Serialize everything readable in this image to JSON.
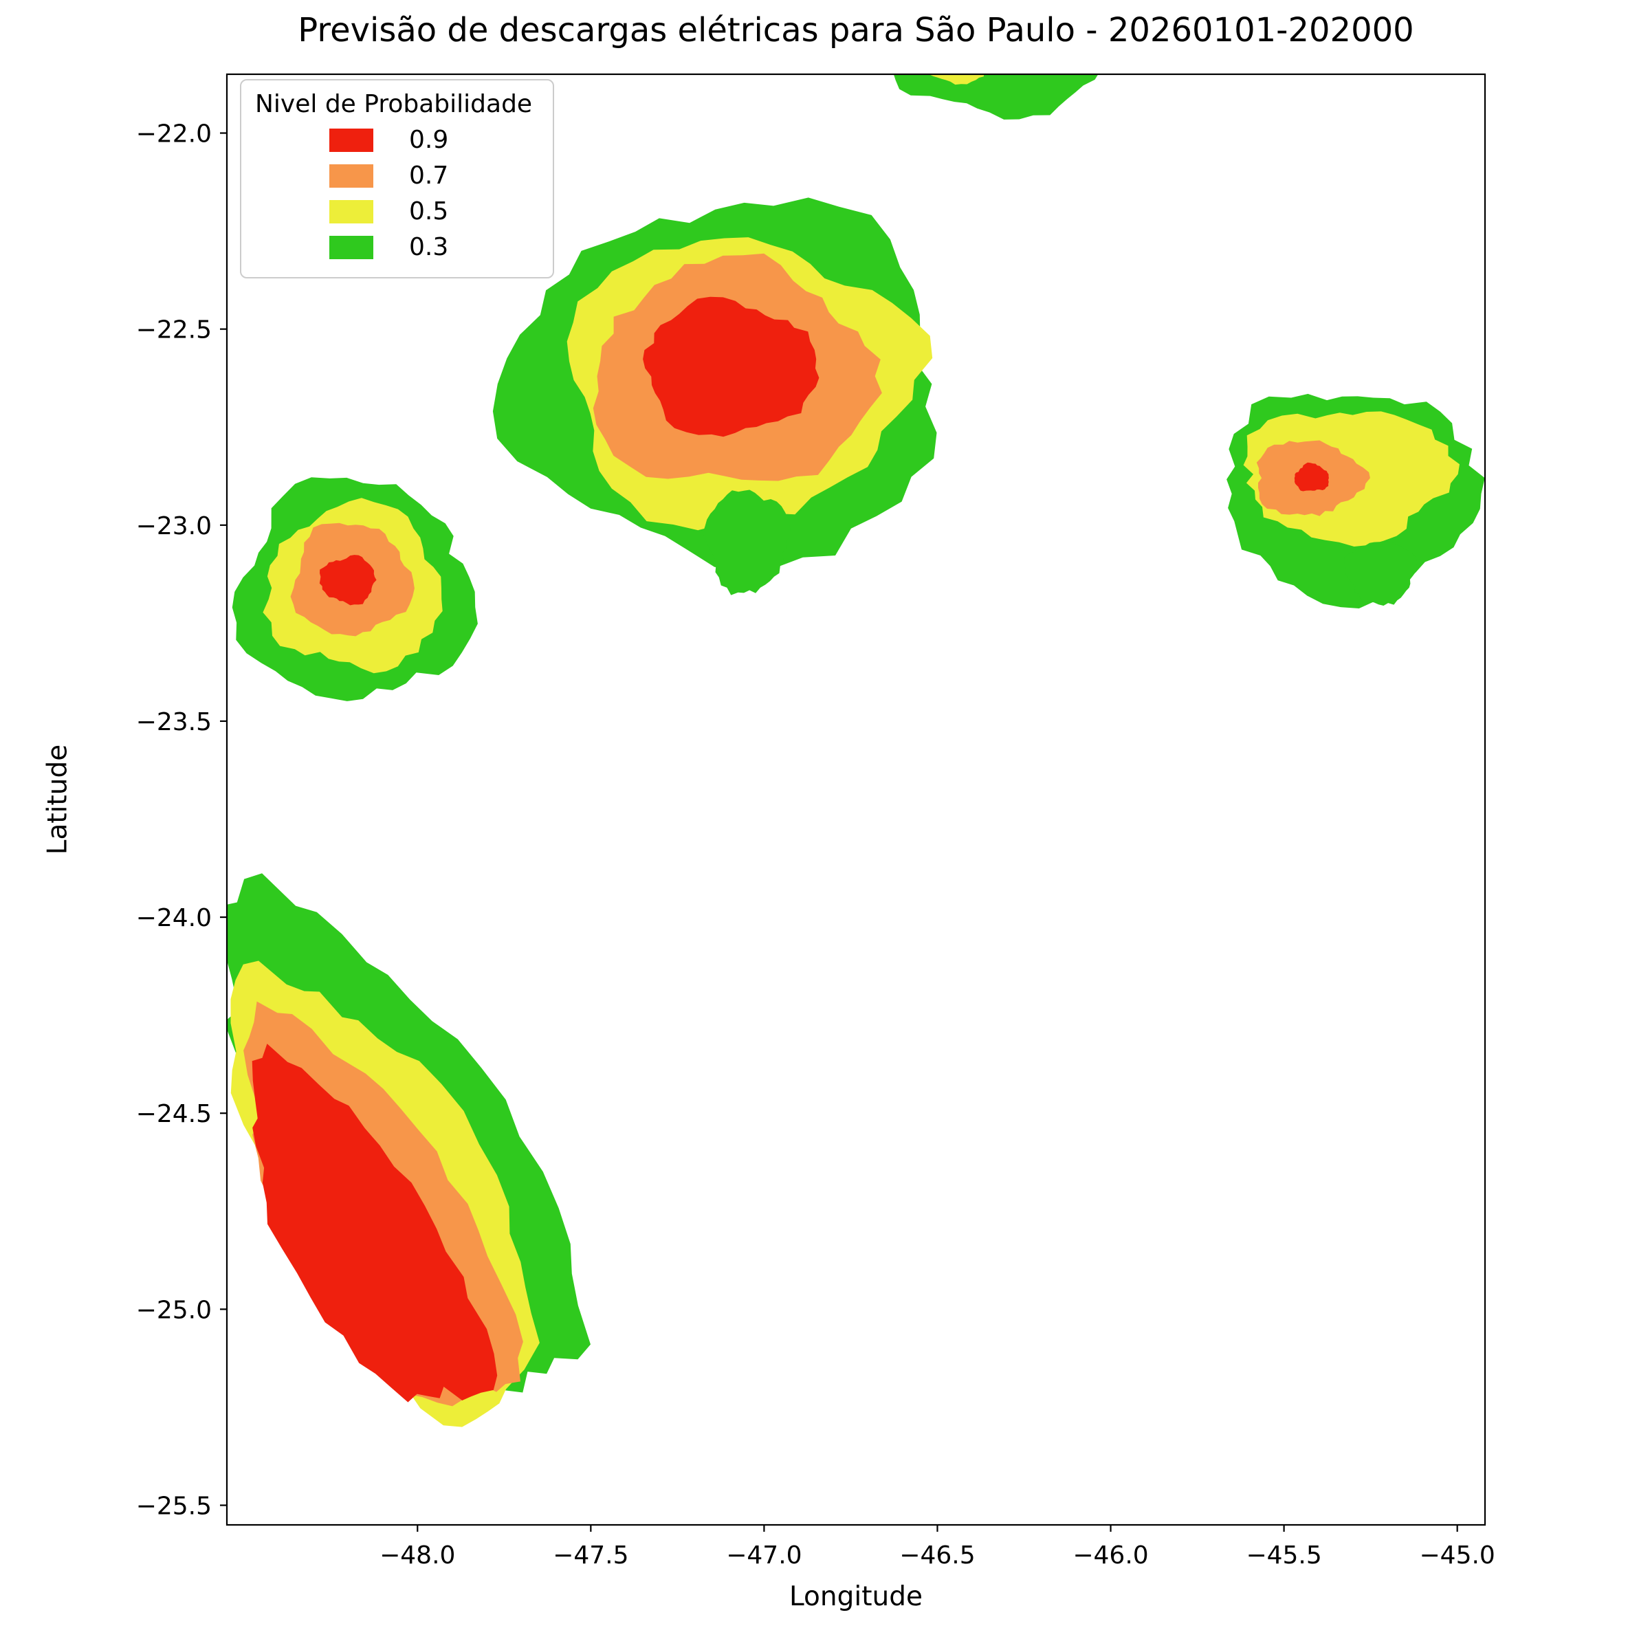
{
  "title": "Previsão de descargas elétricas para São Paulo - 20260101-202000",
  "axes": {
    "xlabel": "Longitude",
    "ylabel": "Latitude"
  },
  "legend": {
    "title": "Nivel de Probabilidade",
    "entries": [
      {
        "label": "0.9",
        "color": "#ef200e"
      },
      {
        "label": "0.7",
        "color": "#f7964a"
      },
      {
        "label": "0.5",
        "color": "#edee39"
      },
      {
        "label": "0.3",
        "color": "#2fc91e"
      }
    ]
  },
  "chart_data": {
    "type": "contour",
    "title": "Previsão de descargas elétricas para São Paulo - 20260101-202000",
    "xlabel": "Longitude",
    "ylabel": "Latitude",
    "xlim": [
      -48.55,
      -44.92
    ],
    "ylim": [
      -25.55,
      -21.85
    ],
    "xticks": [
      -48.0,
      -47.5,
      -47.0,
      -46.5,
      -46.0,
      -45.5,
      -45.0
    ],
    "xtick_labels": [
      "−48.0",
      "−47.5",
      "−47.0",
      "−46.5",
      "−46.0",
      "−45.5",
      "−45.0"
    ],
    "yticks": [
      -22.0,
      -22.5,
      -23.0,
      -23.5,
      -24.0,
      -24.5,
      -25.0,
      -25.5
    ],
    "ytick_labels": [
      "−22.0",
      "−22.5",
      "−23.0",
      "−23.5",
      "−24.0",
      "−24.5",
      "−25.0",
      "−25.5"
    ],
    "grid": false,
    "legend_position": "upper left",
    "probability_levels": [
      0.3,
      0.5,
      0.7,
      0.9
    ],
    "level_colors": {
      "0.3": "#2fc91e",
      "0.5": "#edee39",
      "0.7": "#f7964a",
      "0.9": "#ef200e"
    },
    "blobs": [
      {
        "name": "north-cell",
        "seed": 3,
        "rotation_deg": 0,
        "levels": [
          {
            "level": 0.3,
            "color": "#2fc91e",
            "cx": -46.33,
            "cy": -21.8,
            "rx": 0.3,
            "ry": 0.155
          },
          {
            "level": 0.5,
            "color": "#edee39",
            "cx": -46.44,
            "cy": -21.82,
            "rx": 0.11,
            "ry": 0.05
          }
        ]
      },
      {
        "name": "central-cell",
        "seed": 7,
        "rotation_deg": 0,
        "levels": [
          {
            "level": 0.3,
            "color": "#2fc91e",
            "cx": -47.1,
            "cy": -22.64,
            "rx": 0.62,
            "ry": 0.46
          },
          {
            "level": 0.5,
            "color": "#edee39",
            "cx": -47.08,
            "cy": -22.63,
            "rx": 0.5,
            "ry": 0.36
          },
          {
            "level": 0.7,
            "color": "#f7964a",
            "cx": -47.09,
            "cy": -22.62,
            "rx": 0.4,
            "ry": 0.29
          },
          {
            "level": 0.9,
            "color": "#ef200e",
            "cx": -47.1,
            "cy": -22.6,
            "rx": 0.25,
            "ry": 0.17
          }
        ]
      },
      {
        "name": "central-cell-tail",
        "seed": 9,
        "rotation_deg": 0,
        "levels": [
          {
            "level": 0.3,
            "color": "#2fc91e",
            "cx": -47.05,
            "cy": -23.04,
            "rx": 0.12,
            "ry": 0.13
          }
        ]
      },
      {
        "name": "west-cell",
        "seed": 5,
        "rotation_deg": 0,
        "levels": [
          {
            "level": 0.3,
            "color": "#2fc91e",
            "cx": -48.18,
            "cy": -23.17,
            "rx": 0.34,
            "ry": 0.28
          },
          {
            "level": 0.5,
            "color": "#edee39",
            "cx": -48.18,
            "cy": -23.16,
            "rx": 0.25,
            "ry": 0.21
          },
          {
            "level": 0.7,
            "color": "#f7964a",
            "cx": -48.19,
            "cy": -23.14,
            "rx": 0.17,
            "ry": 0.145
          },
          {
            "level": 0.9,
            "color": "#ef200e",
            "cx": -48.2,
            "cy": -23.14,
            "rx": 0.08,
            "ry": 0.06
          }
        ]
      },
      {
        "name": "east-cell",
        "seed": 11,
        "rotation_deg": 0,
        "levels": [
          {
            "level": 0.3,
            "color": "#2fc91e",
            "cx": -45.31,
            "cy": -22.92,
            "rx": 0.36,
            "ry": 0.27
          },
          {
            "level": 0.5,
            "color": "#edee39",
            "cx": -45.32,
            "cy": -22.87,
            "rx": 0.3,
            "ry": 0.17
          },
          {
            "level": 0.7,
            "color": "#f7964a",
            "cx": -45.43,
            "cy": -22.88,
            "rx": 0.155,
            "ry": 0.095
          },
          {
            "level": 0.9,
            "color": "#ef200e",
            "cx": -45.42,
            "cy": -22.88,
            "rx": 0.05,
            "ry": 0.035
          }
        ]
      },
      {
        "name": "east-cell-tail",
        "seed": 13,
        "rotation_deg": 0,
        "levels": [
          {
            "level": 0.3,
            "color": "#2fc91e",
            "cx": -45.22,
            "cy": -23.12,
            "rx": 0.1,
            "ry": 0.08
          }
        ]
      },
      {
        "name": "southwest-band",
        "seed": 17,
        "rotation_deg": -55,
        "levels": [
          {
            "level": 0.3,
            "color": "#2fc91e",
            "cx": -48.06,
            "cy": -24.62,
            "rx": 0.75,
            "ry": 0.33
          },
          {
            "level": 0.5,
            "color": "#edee39",
            "cx": -48.09,
            "cy": -24.71,
            "rx": 0.65,
            "ry": 0.28
          },
          {
            "level": 0.7,
            "color": "#f7964a",
            "cx": -48.12,
            "cy": -24.77,
            "rx": 0.58,
            "ry": 0.24
          },
          {
            "level": 0.9,
            "color": "#ef200e",
            "cx": -48.16,
            "cy": -24.82,
            "rx": 0.52,
            "ry": 0.2
          }
        ]
      }
    ]
  }
}
